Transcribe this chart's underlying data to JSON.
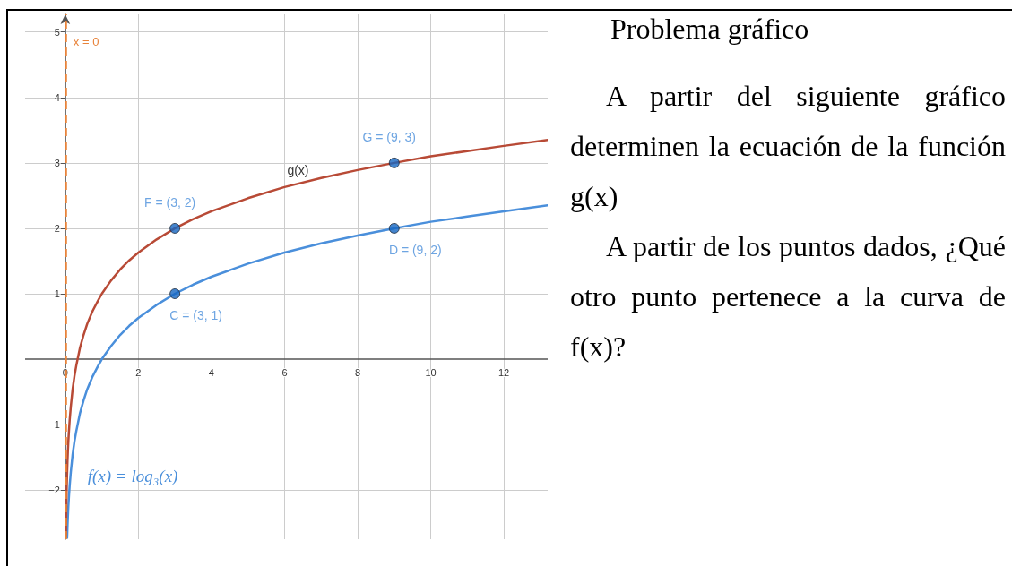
{
  "chart_data": {
    "type": "line",
    "title": "Problema gráfico",
    "annotations": [
      "A partir del siguiente gráfico determinen la ecuación de la función g(x)",
      "A partir de los puntos dados, ¿Qué otro punto pertenece a la curva de f(x)?"
    ],
    "series": [
      {
        "name": "f(x) = log₃(x)",
        "color": "#4a8fdb",
        "x": [
          0.05,
          0.06,
          0.07,
          0.085,
          0.1,
          0.12,
          0.15,
          0.2,
          0.25,
          0.3,
          0.4,
          0.5,
          0.6,
          0.75,
          0.9,
          1,
          1.25,
          1.5,
          1.75,
          2,
          2.5,
          3,
          3.5,
          4,
          5,
          6,
          7,
          8,
          9,
          10,
          11,
          12,
          13.2
        ],
        "values": [
          -2.73,
          -2.56,
          -2.42,
          -2.24,
          -2.1,
          -1.93,
          -1.73,
          -1.46,
          -1.26,
          -1.1,
          -0.83,
          -0.63,
          -0.46,
          -0.26,
          -0.1,
          0,
          0.2,
          0.37,
          0.51,
          0.63,
          0.83,
          1,
          1.14,
          1.26,
          1.46,
          1.63,
          1.77,
          1.89,
          2,
          2.1,
          2.18,
          2.26,
          2.35
        ]
      },
      {
        "name": "g(x)",
        "color": "#b84a36",
        "x": [
          0.017,
          0.02,
          0.025,
          0.03,
          0.035,
          0.04,
          0.05,
          0.06,
          0.07,
          0.085,
          0.1,
          0.12,
          0.15,
          0.2,
          0.25,
          0.3,
          0.4,
          0.5,
          0.6,
          0.75,
          0.9,
          1,
          1.25,
          1.5,
          1.75,
          2,
          2.5,
          3,
          3.5,
          4,
          5,
          6,
          7,
          8,
          9,
          10,
          11,
          12,
          13.2
        ],
        "values": [
          -2.71,
          -2.56,
          -2.36,
          -2.19,
          -2.05,
          -1.93,
          -1.73,
          -1.56,
          -1.42,
          -1.24,
          -1.1,
          -0.93,
          -0.73,
          -0.46,
          -0.26,
          -0.1,
          0.17,
          0.37,
          0.54,
          0.74,
          0.9,
          1,
          1.2,
          1.37,
          1.51,
          1.63,
          1.83,
          2,
          2.14,
          2.26,
          2.46,
          2.63,
          2.77,
          2.89,
          3,
          3.1,
          3.18,
          3.26,
          3.35
        ]
      },
      {
        "type": "scatter",
        "color": "#1565c0",
        "marker": "circle",
        "x": [
          9,
          3,
          9,
          3
        ],
        "values": [
          3,
          2,
          2,
          1
        ],
        "value_labels": [
          "G = (9, 3)",
          "F = (3, 2)",
          "D = (9, 2)",
          "C = (3, 1)"
        ]
      }
    ],
    "xlim": [
      -1.1,
      13.2
    ],
    "ylim": [
      -2.75,
      5.27
    ],
    "xticks": [
      0,
      2,
      4,
      6,
      8,
      10,
      12
    ],
    "yticks": [
      {
        "value": -2,
        "label": "−2"
      },
      {
        "value": -1,
        "label": "−1"
      },
      1,
      2,
      3,
      4,
      5
    ],
    "grid": true,
    "ref_lines": [
      {
        "axis": "x",
        "value": 0,
        "label": "x = 0",
        "color": "#e8833a",
        "line_style": "dashed"
      }
    ]
  }
}
